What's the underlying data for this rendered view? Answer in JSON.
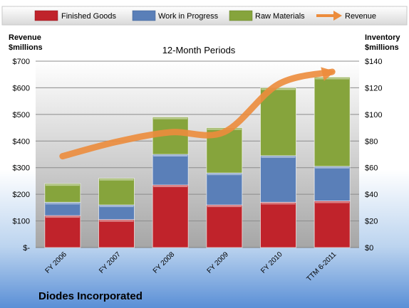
{
  "chart_data": {
    "type": "bar",
    "stacked": true,
    "subtitle": "12-Month Periods",
    "company": "Diodes Incorporated",
    "left_axis": {
      "label_line1": "Revenue",
      "label_line2": "$millions",
      "range": [
        0,
        700
      ],
      "ticks": [
        0,
        100,
        200,
        300,
        400,
        500,
        600,
        700
      ],
      "tick_labels": [
        "$-",
        "$100",
        "$200",
        "$300",
        "$400",
        "$500",
        "$600",
        "$700"
      ]
    },
    "right_axis": {
      "label_line1": "Inventory",
      "label_line2": "$millions",
      "range": [
        0,
        140
      ],
      "ticks": [
        0,
        20,
        40,
        60,
        80,
        100,
        120,
        140
      ],
      "tick_labels": [
        "$0",
        "$20",
        "$40",
        "$60",
        "$80",
        "$100",
        "$120",
        "$140"
      ]
    },
    "categories": [
      "FY 2006",
      "FY 2007",
      "FY 2008",
      "FY 2009",
      "FY 2010",
      "TTM 6-2011"
    ],
    "series": [
      {
        "name": "Finished Goods",
        "axis": "right",
        "color": "#c0232b",
        "values": [
          24,
          21,
          47,
          32,
          34,
          35
        ]
      },
      {
        "name": "Work in Progress",
        "axis": "right",
        "color": "#5a7fb8",
        "values": [
          10,
          11,
          23,
          24,
          35,
          26
        ]
      },
      {
        "name": "Raw Materials",
        "axis": "right",
        "color": "#86a43c",
        "values": [
          14,
          20,
          28,
          34,
          51,
          67
        ]
      }
    ],
    "line_series": {
      "name": "Revenue",
      "axis": "left",
      "color": "#ec8c3c",
      "values": [
        343,
        397,
        433,
        434,
        613,
        660
      ]
    },
    "legend_position": "top",
    "grid": true
  }
}
